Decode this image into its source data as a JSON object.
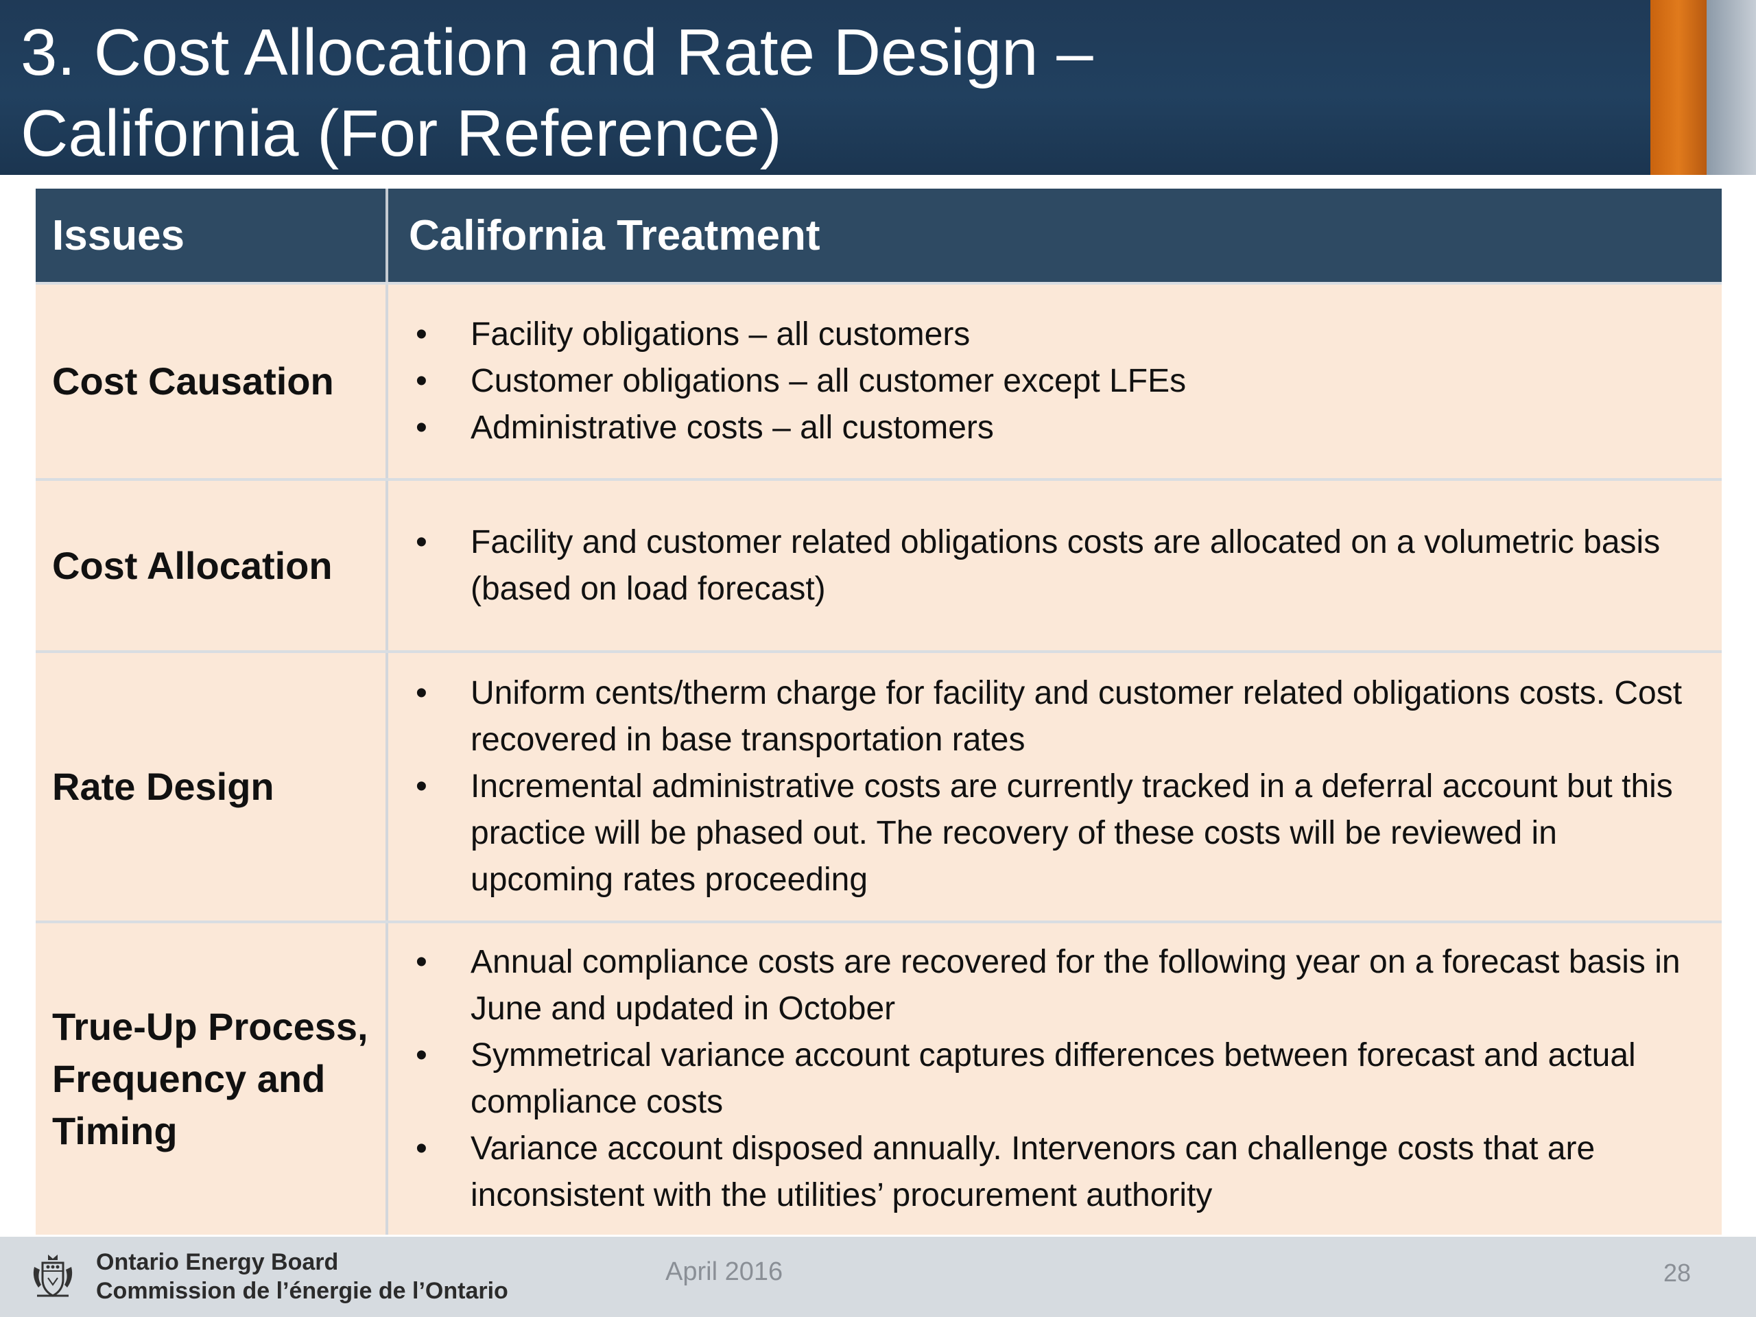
{
  "slide": {
    "title_line1": "3. Cost Allocation and Rate Design –",
    "title_line2": "California (For Reference)"
  },
  "table": {
    "headers": [
      "Issues",
      "California Treatment"
    ],
    "rows": [
      {
        "issue": "Cost Causation",
        "bullets": [
          "Facility obligations – all customers",
          "Customer obligations – all customer except  LFEs",
          "Administrative costs – all customers"
        ]
      },
      {
        "issue": "Cost Allocation",
        "bullets": [
          "Facility and customer related obligations costs are allocated on a volumetric basis (based on load forecast)"
        ]
      },
      {
        "issue": "Rate Design",
        "bullets": [
          "Uniform cents/therm charge for facility and customer related obligations costs.  Cost recovered in base transportation rates",
          "Incremental administrative costs are currently tracked in a deferral account but this practice will be phased out.  The recovery of these costs will be reviewed in upcoming rates proceeding"
        ]
      },
      {
        "issue": "True-Up Process, Frequency and Timing",
        "bullets": [
          "Annual compliance costs are recovered for the following year on a forecast basis in June and updated in October",
          "Symmetrical variance account captures differences between forecast and actual compliance costs",
          "Variance account disposed annually.  Intervenors can challenge costs that are inconsistent with the utilities’ procurement authority"
        ]
      }
    ],
    "bullet_char": "•"
  },
  "footer": {
    "org_line1": "Ontario Energy Board",
    "org_line2": "Commission de l’énergie de l’Ontario",
    "date": "April 2016",
    "page": "28",
    "logo_icon": "coat-of-arms-icon"
  },
  "colors": {
    "header_bg": "#1f3a57",
    "accent_orange": "#e07a1c",
    "table_header_bg": "#2e4a63",
    "row_bg": "#fbe8d8",
    "footer_bg": "#d6dbe0"
  }
}
